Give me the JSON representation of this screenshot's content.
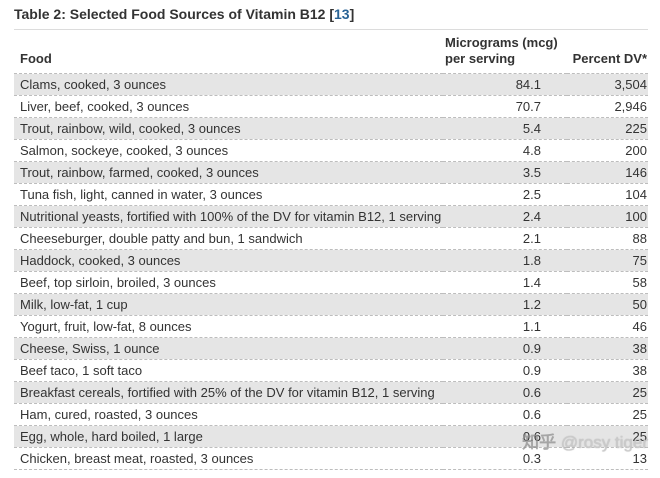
{
  "title": {
    "prefix": "Table 2: Selected Food Sources of Vitamin B12 ",
    "bracket_open": "[",
    "ref_number": "13",
    "bracket_close": "]"
  },
  "table": {
    "header": {
      "food": "Food",
      "mcg_line1": "Micrograms (mcg)",
      "mcg_line2": "per serving",
      "dv": "Percent DV*"
    },
    "rows": [
      {
        "food": "Clams, cooked, 3 ounces",
        "mcg": "84.1",
        "dv": "3,504"
      },
      {
        "food": "Liver, beef, cooked, 3 ounces",
        "mcg": "70.7",
        "dv": "2,946"
      },
      {
        "food": "Trout, rainbow, wild, cooked, 3 ounces",
        "mcg": "5.4",
        "dv": "225"
      },
      {
        "food": "Salmon, sockeye, cooked, 3 ounces",
        "mcg": "4.8",
        "dv": "200"
      },
      {
        "food": "Trout, rainbow, farmed, cooked, 3 ounces",
        "mcg": "3.5",
        "dv": "146"
      },
      {
        "food": "Tuna fish, light, canned in water, 3 ounces",
        "mcg": "2.5",
        "dv": "104"
      },
      {
        "food": "Nutritional yeasts, fortified with 100% of the DV for vitamin B12, 1 serving",
        "mcg": "2.4",
        "dv": "100"
      },
      {
        "food": "Cheeseburger, double patty and bun, 1 sandwich",
        "mcg": "2.1",
        "dv": "88"
      },
      {
        "food": "Haddock, cooked, 3 ounces",
        "mcg": "1.8",
        "dv": "75"
      },
      {
        "food": "Beef, top sirloin, broiled, 3 ounces",
        "mcg": "1.4",
        "dv": "58"
      },
      {
        "food": "Milk, low-fat, 1 cup",
        "mcg": "1.2",
        "dv": "50"
      },
      {
        "food": "Yogurt, fruit, low-fat, 8 ounces",
        "mcg": "1.1",
        "dv": "46"
      },
      {
        "food": "Cheese, Swiss, 1 ounce",
        "mcg": "0.9",
        "dv": "38"
      },
      {
        "food": "Beef taco, 1 soft taco",
        "mcg": "0.9",
        "dv": "38"
      },
      {
        "food": "Breakfast cereals, fortified with 25% of the DV for vitamin B12, 1 serving",
        "mcg": "0.6",
        "dv": "25"
      },
      {
        "food": "Ham, cured, roasted, 3 ounces",
        "mcg": "0.6",
        "dv": "25"
      },
      {
        "food": "Egg, whole, hard boiled, 1 large",
        "mcg": "0.6",
        "dv": "25"
      },
      {
        "food": "Chicken, breast meat, roasted, 3 ounces",
        "mcg": "0.3",
        "dv": "13"
      }
    ]
  },
  "watermark": {
    "brand": "知乎",
    "handle": "@rosy tiger"
  },
  "colors": {
    "text": "#333333",
    "link_blue": "#2a6496",
    "row_stripe": "#e5e5e5",
    "dashed_border": "#bdbdbd",
    "title_rule": "#dcdcdc",
    "watermark_gray": "#8c8c8c"
  }
}
